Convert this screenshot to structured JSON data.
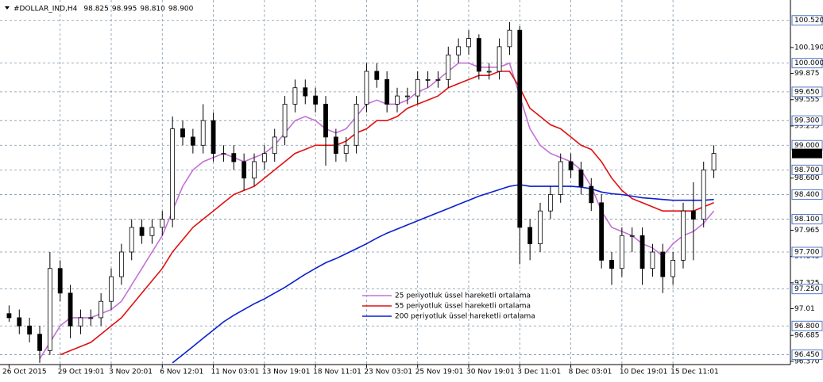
{
  "chart_data": {
    "type": "candlestick",
    "title": "#DOLLAR_IND,H4",
    "header_prices": [
      "98.825",
      "98.995",
      "98.810",
      "98.900"
    ],
    "x_labels": [
      "26 Oct 2015",
      "29 Oct 19:01",
      "3 Nov 20:01",
      "6 Nov 12:01",
      "11 Nov 03:01",
      "13 Nov 19:01",
      "18 Nov 11:01",
      "23 Nov 03:01",
      "25 Nov 19:01",
      "30 Nov 19:01",
      "3 Dec 11:01",
      "8 Dec 03:01",
      "10 Dec 19:01",
      "15 Dec 11:01"
    ],
    "open": [
      96.95,
      96.9,
      96.8,
      96.7,
      96.5,
      97.5,
      97.2,
      96.8,
      96.9,
      96.9,
      97.1,
      97.4,
      97.7,
      98.0,
      97.9,
      98.0,
      98.1,
      99.2,
      99.1,
      99.0,
      99.3,
      98.9,
      98.9,
      98.8,
      98.6,
      98.8,
      98.9,
      99.1,
      99.5,
      99.7,
      99.6,
      99.5,
      99.1,
      98.9,
      99.0,
      99.5,
      99.9,
      99.8,
      99.5,
      99.6,
      99.6,
      99.8,
      99.8,
      99.8,
      100.1,
      100.2,
      100.3,
      99.9,
      99.9,
      100.2,
      100.4,
      98.0,
      97.8,
      98.2,
      98.4,
      98.8,
      98.7,
      98.5,
      98.3,
      97.6,
      97.5,
      97.9,
      97.9,
      97.5,
      97.7,
      97.4,
      97.6,
      98.2,
      98.1,
      98.7
    ],
    "high": [
      97.05,
      97.0,
      96.9,
      96.8,
      97.7,
      97.6,
      97.3,
      97.0,
      97.0,
      97.2,
      97.5,
      97.8,
      98.1,
      98.1,
      98.1,
      98.2,
      99.35,
      99.3,
      99.2,
      99.5,
      99.4,
      99.0,
      99.0,
      98.9,
      98.9,
      99.0,
      99.2,
      99.6,
      99.8,
      99.8,
      99.7,
      99.6,
      99.2,
      99.1,
      99.6,
      100.0,
      100.0,
      99.9,
      99.7,
      99.7,
      99.9,
      99.9,
      99.9,
      100.2,
      100.3,
      100.4,
      100.35,
      100.0,
      100.3,
      100.5,
      100.45,
      98.1,
      98.3,
      98.5,
      98.9,
      98.9,
      98.8,
      98.6,
      98.4,
      97.7,
      98.0,
      98.0,
      98.0,
      97.8,
      97.8,
      97.7,
      98.3,
      98.55,
      98.8,
      99.0
    ],
    "low": [
      96.85,
      96.7,
      96.6,
      96.35,
      96.45,
      97.1,
      96.65,
      96.7,
      96.8,
      96.8,
      97.0,
      97.3,
      97.6,
      97.8,
      97.8,
      97.9,
      98.0,
      99.0,
      98.9,
      98.9,
      98.8,
      98.8,
      98.7,
      98.45,
      98.5,
      98.7,
      98.8,
      99.0,
      99.4,
      99.5,
      99.4,
      98.75,
      98.8,
      98.8,
      98.9,
      99.4,
      99.7,
      99.4,
      99.4,
      99.5,
      99.5,
      99.7,
      99.7,
      99.7,
      100.0,
      100.1,
      99.8,
      99.8,
      99.8,
      100.1,
      97.55,
      97.6,
      97.7,
      98.1,
      98.3,
      98.6,
      98.4,
      98.2,
      97.5,
      97.3,
      97.4,
      97.7,
      97.3,
      97.4,
      97.2,
      97.3,
      97.5,
      97.6,
      98.0,
      98.6
    ],
    "close": [
      96.9,
      96.8,
      96.7,
      96.5,
      97.5,
      97.2,
      96.8,
      96.9,
      96.9,
      97.1,
      97.4,
      97.7,
      98.0,
      97.9,
      98.0,
      98.1,
      99.2,
      99.1,
      99.0,
      99.3,
      98.9,
      98.9,
      98.8,
      98.6,
      98.8,
      98.9,
      99.1,
      99.5,
      99.7,
      99.6,
      99.5,
      99.1,
      98.9,
      99.0,
      99.5,
      99.9,
      99.8,
      99.5,
      99.6,
      99.6,
      99.8,
      99.8,
      99.8,
      100.1,
      100.2,
      100.3,
      99.9,
      99.9,
      100.2,
      100.4,
      98.0,
      97.8,
      98.2,
      98.4,
      98.8,
      98.7,
      98.5,
      98.3,
      97.6,
      97.5,
      97.9,
      97.9,
      97.5,
      97.7,
      97.4,
      97.6,
      98.2,
      98.1,
      98.7,
      98.9
    ],
    "series": [
      {
        "name": "25 periyotluk üssel hareketli ortalama",
        "color": "#c470d8",
        "values": [
          null,
          null,
          null,
          96.4,
          96.6,
          96.8,
          96.9,
          96.9,
          96.9,
          96.95,
          97.0,
          97.1,
          97.3,
          97.5,
          97.7,
          97.9,
          98.2,
          98.5,
          98.7,
          98.8,
          98.85,
          98.9,
          98.85,
          98.8,
          98.85,
          98.9,
          99.0,
          99.15,
          99.3,
          99.35,
          99.3,
          99.2,
          99.15,
          99.2,
          99.35,
          99.5,
          99.55,
          99.5,
          99.5,
          99.55,
          99.65,
          99.7,
          99.8,
          99.9,
          100.0,
          100.0,
          99.95,
          99.95,
          99.95,
          100.0,
          99.6,
          99.2,
          99.0,
          98.9,
          98.85,
          98.8,
          98.7,
          98.5,
          98.2,
          98.0,
          97.95,
          97.9,
          97.8,
          97.75,
          97.65,
          97.8,
          97.9,
          97.95,
          98.05,
          98.2
        ]
      },
      {
        "name": "55 periyotluk üssel hareketli ortalama",
        "color": "#e01010",
        "values": [
          null,
          null,
          null,
          null,
          null,
          96.45,
          96.5,
          96.55,
          96.6,
          96.7,
          96.8,
          96.9,
          97.05,
          97.2,
          97.35,
          97.5,
          97.7,
          97.85,
          98.0,
          98.1,
          98.2,
          98.3,
          98.4,
          98.45,
          98.5,
          98.6,
          98.7,
          98.8,
          98.9,
          98.95,
          99.0,
          99.0,
          99.0,
          99.05,
          99.15,
          99.2,
          99.3,
          99.3,
          99.35,
          99.45,
          99.5,
          99.55,
          99.6,
          99.7,
          99.75,
          99.8,
          99.85,
          99.85,
          99.9,
          99.9,
          99.7,
          99.45,
          99.35,
          99.25,
          99.2,
          99.1,
          99.0,
          98.95,
          98.8,
          98.6,
          98.45,
          98.35,
          98.3,
          98.25,
          98.2,
          98.2,
          98.2,
          98.2,
          98.25,
          98.3
        ]
      },
      {
        "name": "200 periyotluk üssel hareketli ortalama",
        "color": "#0a1fd0",
        "values": [
          null,
          null,
          null,
          null,
          null,
          null,
          null,
          null,
          null,
          null,
          null,
          null,
          null,
          null,
          null,
          null,
          96.35,
          96.45,
          96.55,
          96.65,
          96.75,
          96.85,
          96.93,
          97.0,
          97.07,
          97.13,
          97.2,
          97.27,
          97.35,
          97.43,
          97.5,
          97.57,
          97.62,
          97.68,
          97.74,
          97.8,
          97.87,
          97.93,
          97.98,
          98.03,
          98.08,
          98.13,
          98.18,
          98.23,
          98.28,
          98.33,
          98.38,
          98.42,
          98.46,
          98.5,
          98.52,
          98.5,
          98.5,
          98.5,
          98.5,
          98.5,
          98.49,
          98.47,
          98.43,
          98.41,
          98.4,
          98.38,
          98.36,
          98.35,
          98.34,
          98.33,
          98.33,
          98.33,
          98.33,
          98.34
        ]
      }
    ],
    "ylim": [
      96.33,
      100.72
    ],
    "yticks": [
      {
        "value": 100.19,
        "label": "100.190"
      },
      99.875,
      99.555,
      99.235,
      {
        "value": 98.6,
        "label": "98.600"
      },
      97.965,
      97.645,
      97.325,
      97.01,
      96.685,
      {
        "value": 96.37,
        "label": "96.370"
      }
    ],
    "levels": [
      {
        "value": 100.52,
        "label": "100.520"
      },
      {
        "value": 100.0,
        "label": "100.000"
      },
      {
        "value": 99.65,
        "label": "99.650"
      },
      {
        "value": 99.3,
        "label": "99.300"
      },
      {
        "value": 99.0,
        "label": "99.000"
      },
      {
        "value": 98.7,
        "label": "98.700"
      },
      {
        "value": 98.4,
        "label": "98.400"
      },
      {
        "value": 98.1,
        "label": "98.100"
      },
      {
        "value": 97.7,
        "label": "97.700"
      },
      {
        "value": 97.25,
        "label": "97.250"
      },
      {
        "value": 96.8,
        "label": "96.800"
      },
      {
        "value": 96.45,
        "label": "96.450"
      }
    ],
    "last_price": {
      "value": 98.9,
      "label": "98.900"
    },
    "grid": true
  }
}
